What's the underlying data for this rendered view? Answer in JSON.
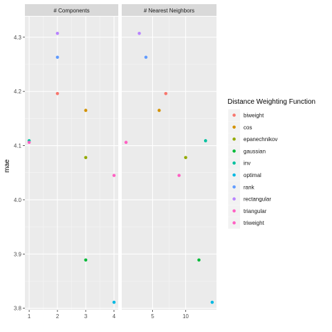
{
  "chart_data": {
    "type": "scatter",
    "ylabel": "mae",
    "ylim": [
      3.797,
      4.338
    ],
    "y_ticks": [
      3.8,
      3.9,
      4.0,
      4.1,
      4.2,
      4.3
    ],
    "y_tick_labels": [
      "3.8",
      "3.9",
      "4.0",
      "4.1",
      "4.2",
      "4.3"
    ],
    "grid": true,
    "legend_position": "right",
    "legend_title": "Distance Weighting Function",
    "series": [
      {
        "name": "biweight",
        "color": "#F8766D",
        "components": 2,
        "neighbors": 7,
        "mae": 4.196
      },
      {
        "name": "cos",
        "color": "#D39200",
        "components": 3,
        "neighbors": 6,
        "mae": 4.165
      },
      {
        "name": "epanechnikov",
        "color": "#93AA00",
        "components": 3,
        "neighbors": 10,
        "mae": 4.078
      },
      {
        "name": "gaussian",
        "color": "#00BA38",
        "components": 3,
        "neighbors": 12,
        "mae": 3.889
      },
      {
        "name": "inv",
        "color": "#00C19F",
        "components": 1,
        "neighbors": 13,
        "mae": 4.109
      },
      {
        "name": "optimal",
        "color": "#00B9E3",
        "components": 4,
        "neighbors": 14,
        "mae": 3.811
      },
      {
        "name": "rank",
        "color": "#619CFF",
        "components": 2,
        "neighbors": 4,
        "mae": 4.263
      },
      {
        "name": "rectangular",
        "color": "#B983FF",
        "components": 2,
        "neighbors": 3,
        "mae": 4.307
      },
      {
        "name": "triangular",
        "color": "#FF61C3",
        "components": 4,
        "neighbors": 9,
        "mae": 4.045
      },
      {
        "name": "triweight",
        "color": "#FF61C3",
        "components": 1,
        "neighbors": 1,
        "mae": 4.106
      }
    ],
    "panels": [
      {
        "title": "# Components",
        "x_field": "components",
        "xlim": [
          0.85,
          4.15
        ],
        "x_ticks": [
          1,
          2,
          3,
          4
        ],
        "x_tick_labels": [
          "1",
          "2",
          "3",
          "4"
        ]
      },
      {
        "title": "# Nearest Neighbors",
        "x_field": "neighbors",
        "xlim": [
          0.35,
          14.65
        ],
        "x_ticks": [
          5,
          10
        ],
        "x_tick_labels": [
          "5",
          "10"
        ]
      }
    ]
  }
}
